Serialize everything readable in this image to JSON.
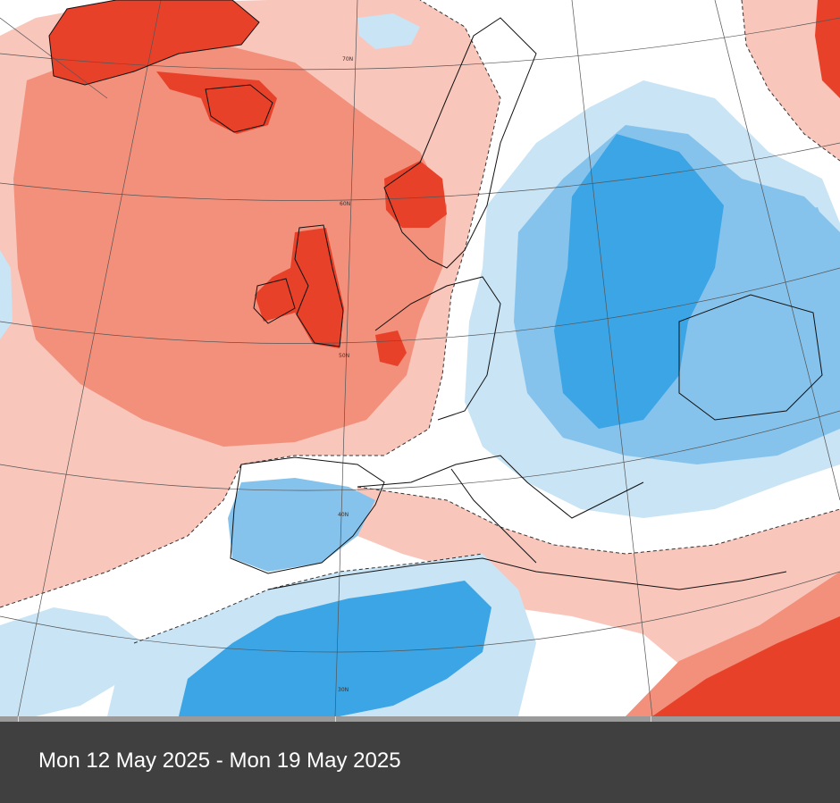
{
  "period": {
    "label": "Mon 12 May 2025 - Mon 19 May 2025"
  },
  "map": {
    "graticule_labels": [
      "70N",
      "60N",
      "50N",
      "40N",
      "30N"
    ],
    "anomaly_colors": {
      "strong_warm": "#e8412a",
      "warm": "#f3907b",
      "slight_warm": "#f9c6bb",
      "neutral": "#ffffff",
      "slight_cool": "#c9e4f5",
      "cool": "#86c3ec",
      "strong_cool": "#3ba5e6"
    }
  },
  "timeline": {
    "tick_count": 3
  }
}
